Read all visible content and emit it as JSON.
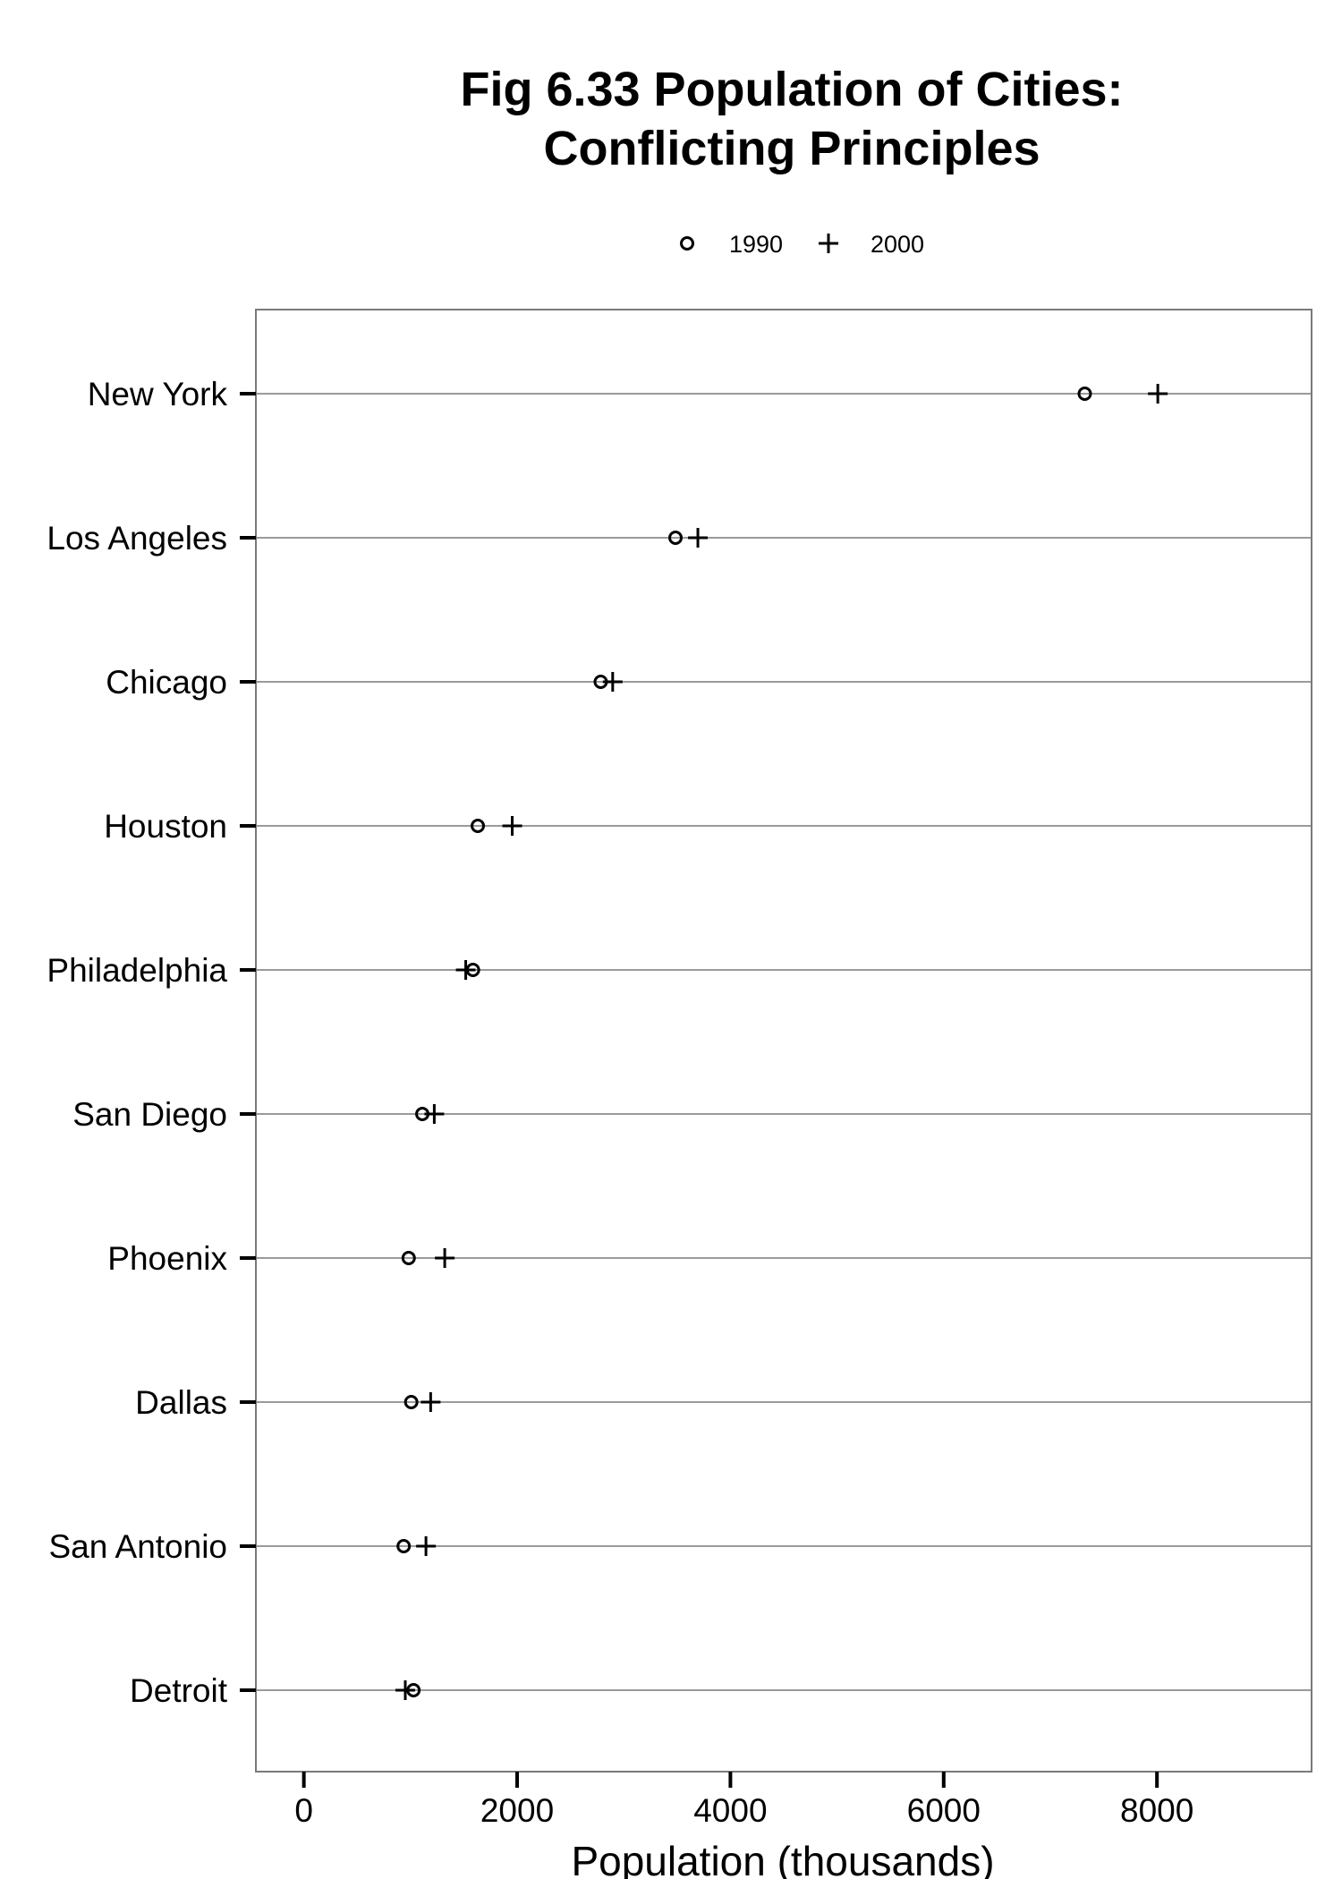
{
  "chart_data": {
    "type": "scatter",
    "title_lines": [
      "Fig 6.33 Population of Cities:",
      "Conflicting Principles"
    ],
    "xlabel": "Population (thousands)",
    "ylabel": "",
    "xlim": [
      -450,
      9450
    ],
    "xticks": [
      0,
      2000,
      4000,
      6000,
      8000
    ],
    "xtick_labels": [
      "0",
      "2000",
      "4000",
      "6000",
      "8000"
    ],
    "grid": "horizontal",
    "legend_position": "top-center",
    "categories": [
      "New York",
      "Los Angeles",
      "Chicago",
      "Houston",
      "Philadelphia",
      "San Diego",
      "Phoenix",
      "Dallas",
      "San Antonio",
      "Detroit"
    ],
    "series": [
      {
        "name": "1990",
        "marker": "circle",
        "values": [
          7323,
          3485,
          2784,
          1631,
          1586,
          1111,
          983,
          1007,
          936,
          1028
        ]
      },
      {
        "name": "2000",
        "marker": "plus",
        "values": [
          8008,
          3695,
          2896,
          1954,
          1518,
          1223,
          1321,
          1189,
          1145,
          951
        ]
      }
    ]
  },
  "colors": {
    "marks": "#000000",
    "grid": "#9a9a9a",
    "frame": "#7a7a7a"
  }
}
